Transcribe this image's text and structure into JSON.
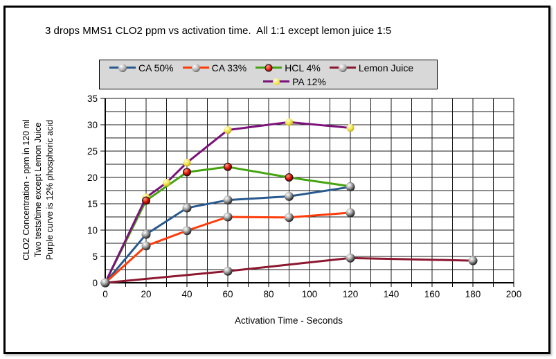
{
  "colors": {
    "background": "#ffffff",
    "figure_border": "#000000",
    "grid": "#1a1a1a",
    "legend_background": "#d8d8d8",
    "ca50_blue": "#28598f",
    "ca33_orange": "#ff3c0a",
    "hcl_green": "#44a410",
    "lemon_maroon": "#8c1830",
    "pa_purple": "#7a127a"
  },
  "chart_data": {
    "type": "line",
    "title": "3 drops MMS1 CLO2 ppm vs activation time.  All 1:1 except lemon juice 1:5",
    "xlabel": "Activation Time - Seconds",
    "ylabel_lines": [
      "CLO2 Concentration - ppm in 120 ml",
      "Two tests/time except Lemon Juice",
      "Purple curve is 12% phosphoric acid"
    ],
    "xlim": [
      0,
      200
    ],
    "ylim": [
      0,
      35
    ],
    "x_ticks": [
      0,
      20,
      40,
      60,
      80,
      100,
      120,
      140,
      160,
      180,
      200
    ],
    "y_ticks": [
      0,
      5,
      10,
      15,
      20,
      25,
      30,
      35
    ],
    "x_minor_step": 10,
    "y_minor_step": 2.5,
    "grid": true,
    "legend_position": "top",
    "legend_rows": [
      [
        0,
        1,
        2,
        3
      ],
      [
        4
      ]
    ],
    "series": [
      {
        "name": "CA 50%",
        "color": "#28598f",
        "marker": "gray-sphere",
        "points": [
          [
            0,
            0
          ],
          [
            20,
            9.2
          ],
          [
            40,
            14.2
          ],
          [
            60,
            15.7
          ],
          [
            90,
            16.4
          ],
          [
            120,
            18.2
          ]
        ]
      },
      {
        "name": "CA 33%",
        "color": "#ff3c0a",
        "marker": "gray-sphere",
        "points": [
          [
            0,
            0
          ],
          [
            20,
            7.0
          ],
          [
            40,
            9.9
          ],
          [
            60,
            12.5
          ],
          [
            90,
            12.4
          ],
          [
            120,
            13.3
          ]
        ]
      },
      {
        "name": "HCL 4%",
        "color": "#44a410",
        "marker": "red-dot",
        "points": [
          [
            0,
            0
          ],
          [
            20,
            15.6
          ],
          [
            40,
            21.0
          ],
          [
            60,
            22.0
          ],
          [
            90,
            20.0
          ],
          [
            120,
            18.3
          ]
        ]
      },
      {
        "name": "Lemon Juice",
        "color": "#8c1830",
        "marker": "gray-sphere",
        "points": [
          [
            0,
            0
          ],
          [
            60,
            2.2
          ],
          [
            120,
            4.7
          ],
          [
            180,
            4.2
          ]
        ]
      },
      {
        "name": "PA 12%",
        "color": "#7a127a",
        "marker": "yellow-dot",
        "points": [
          [
            0,
            0
          ],
          [
            20,
            16.2
          ],
          [
            30,
            19.0
          ],
          [
            40,
            22.8
          ],
          [
            60,
            29.0
          ],
          [
            90,
            30.5
          ],
          [
            120,
            29.4
          ]
        ]
      }
    ]
  }
}
